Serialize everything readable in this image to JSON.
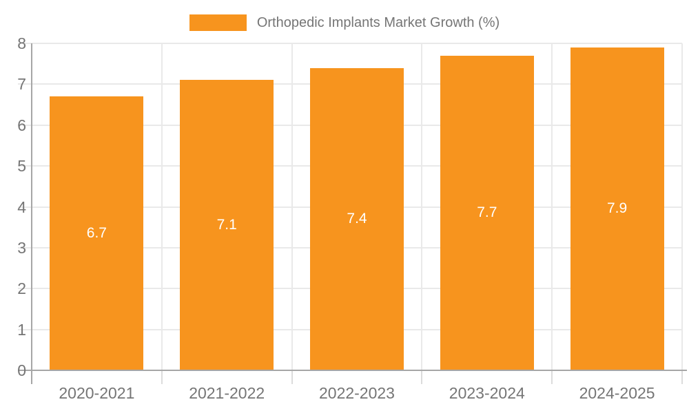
{
  "legend": {
    "label": "Orthopedic Implants Market Growth (%)"
  },
  "colors": {
    "bar": "#F7941E",
    "axis": "#A6A6A6",
    "grid": "#E9E9E9",
    "text": "#757575",
    "value_label": "#FFFFFF"
  },
  "chart_data": {
    "type": "bar",
    "title": "Orthopedic Implants Market Growth (%)",
    "categories": [
      "2020-2021",
      "2021-2022",
      "2022-2023",
      "2023-2024",
      "2024-2025"
    ],
    "values": [
      6.7,
      7.1,
      7.4,
      7.7,
      7.9
    ],
    "value_labels": [
      "6.7",
      "7.1",
      "7.4",
      "7.7",
      "7.9"
    ],
    "xlabel": "",
    "ylabel": "",
    "ylim": [
      0,
      8
    ],
    "ytick_interval": 1,
    "ytick_labels": [
      "0",
      "1",
      "2",
      "3",
      "4",
      "5",
      "6",
      "7",
      "8"
    ],
    "grid": true,
    "legend_position": "top-center"
  }
}
